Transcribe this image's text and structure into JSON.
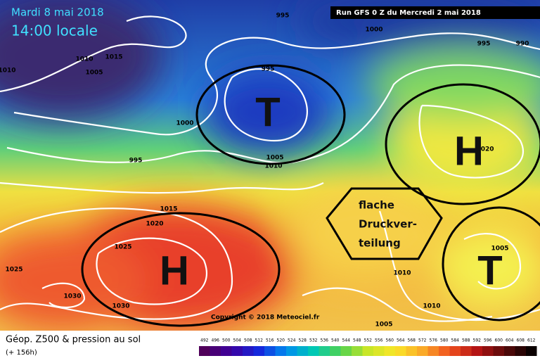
{
  "header": {
    "date": "Mardi 8 mai 2018",
    "time": "14:00 locale",
    "run": "Run GFS 0 Z du Mercredi 2 mai 2018"
  },
  "isobar_labels": [
    "995",
    "1000",
    "995",
    "990",
    "1010",
    "1015",
    "1005",
    "1010",
    "995",
    "1000",
    "995",
    "1005",
    "1010",
    "1015",
    "1020",
    "1025",
    "1025",
    "1030",
    "1030",
    "1010",
    "1010",
    "1005",
    "1005",
    "1020"
  ],
  "systems": [
    "T",
    "H",
    "H",
    "T"
  ],
  "annotation": {
    "lines": [
      "flache",
      "Druckver-",
      "teilung"
    ]
  },
  "copyright": "Copyright © 2018 Meteociel.fr",
  "legend": {
    "title": "Géop. Z500 & pression au sol",
    "lead": "(+ 156h)",
    "ticks": [
      492,
      496,
      500,
      504,
      508,
      512,
      516,
      520,
      524,
      528,
      532,
      536,
      540,
      544,
      548,
      552,
      556,
      560,
      564,
      568,
      572,
      576,
      580,
      584,
      588,
      592,
      596,
      600,
      604,
      608,
      612
    ]
  }
}
